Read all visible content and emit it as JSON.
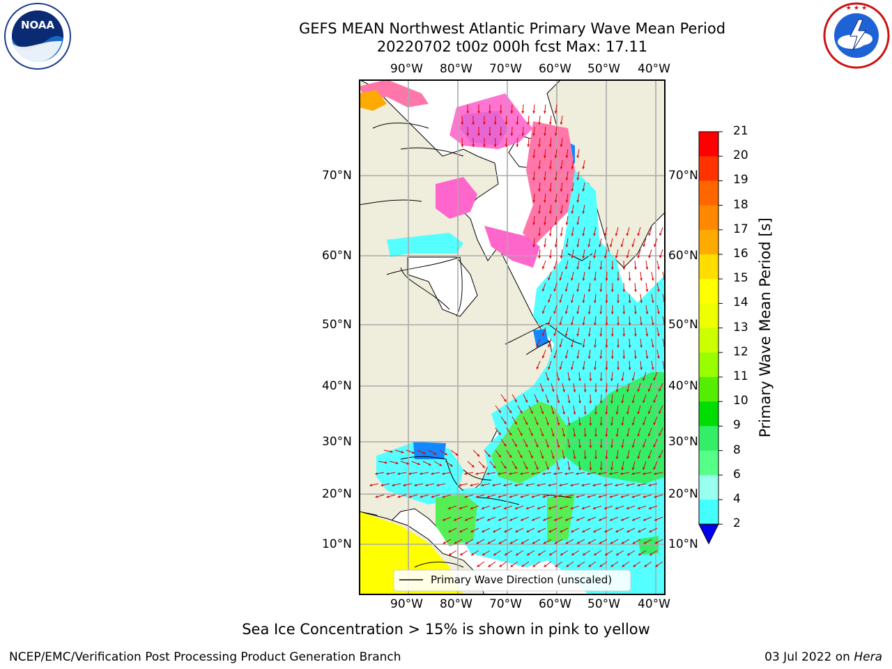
{
  "header": {
    "title_line1": "GEFS MEAN Northwest Atlantic Primary Wave Mean Period",
    "title_line2": "20220702 t00z 000h fcst   Max: 17.11",
    "left_logo_text": "NOAA",
    "left_logo_ring_text": "NATIONAL OCEANIC AND ATMOSPHERIC ADMINISTRATION · U.S. DEPARTMENT OF COMMERCE",
    "right_logo_ring_text": "NATIONAL WEATHER SERVICE"
  },
  "map": {
    "lon_labels": [
      "90°W",
      "80°W",
      "70°W",
      "60°W",
      "50°W",
      "40°W"
    ],
    "lat_labels": [
      "70°N",
      "60°N",
      "50°N",
      "40°N",
      "30°N",
      "20°N",
      "10°N"
    ],
    "legend_text": "Primary Wave Direction (unscaled)",
    "land_color": "#efeddc",
    "vector_color": "#e00000"
  },
  "colorbar": {
    "label": "Primary Wave Mean Period [s]",
    "ticks": [
      "21",
      "20",
      "19",
      "18",
      "17",
      "16",
      "15",
      "14",
      "13",
      "12",
      "11",
      "10",
      "9",
      "8",
      "6",
      "4",
      "2"
    ],
    "colors": [
      "#ff0000",
      "#ff3300",
      "#ff6600",
      "#ff8800",
      "#ffaa00",
      "#ffdd00",
      "#ffff00",
      "#eeff00",
      "#ccff00",
      "#99ff00",
      "#55ee00",
      "#00dd00",
      "#33ee66",
      "#55ff88",
      "#99ffee",
      "#44ffff",
      "#00f0ff",
      "#00ddff",
      "#0088ff",
      "#0055ff"
    ],
    "under_color": "#0000ee"
  },
  "footer": {
    "sea_ice_note": "Sea Ice Concentration > 15% is shown in pink to yellow",
    "credit": "NCEP/EMC/Verification Post Processing Product Generation Branch",
    "date": "03 Jul 2022 on ",
    "machine": "Hera"
  }
}
